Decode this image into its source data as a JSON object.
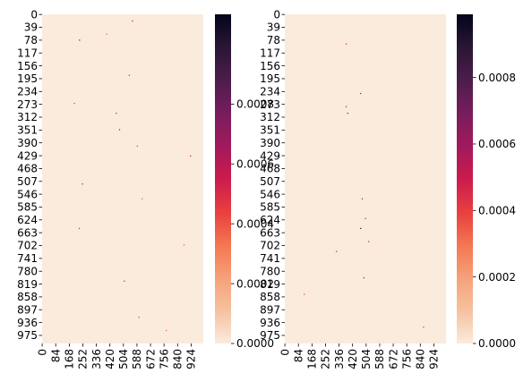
{
  "chart_data": [
    {
      "type": "heatmap",
      "colormap": "rocket_r",
      "rows": 1000,
      "cols": 1000,
      "y_tick_labels": [
        "0",
        "39",
        "78",
        "117",
        "156",
        "195",
        "234",
        "273",
        "312",
        "351",
        "390",
        "429",
        "468",
        "507",
        "546",
        "585",
        "624",
        "663",
        "702",
        "741",
        "780",
        "819",
        "858",
        "897",
        "936",
        "975"
      ],
      "x_tick_labels": [
        "0",
        "84",
        "168",
        "252",
        "336",
        "420",
        "504",
        "588",
        "672",
        "756",
        "840",
        "924"
      ],
      "colorbar_tick_labels": [
        "0.0000",
        "0.0002",
        "0.0004",
        "0.0006",
        "0.0008"
      ],
      "colorbar_ticks": [
        0,
        0.0002,
        0.0004,
        0.0006,
        0.0008
      ],
      "value_range": [
        0,
        0.0011
      ],
      "background_value": 0,
      "sparse_values": [
        {
          "row": 20,
          "col": 560,
          "value": 0.00055
        },
        {
          "row": 78,
          "col": 232,
          "value": 0.00085
        },
        {
          "row": 60,
          "col": 400,
          "value": 0.0004
        },
        {
          "row": 185,
          "col": 540,
          "value": 0.0006
        },
        {
          "row": 270,
          "col": 200,
          "value": 0.0005
        },
        {
          "row": 300,
          "col": 460,
          "value": 0.0007
        },
        {
          "row": 350,
          "col": 480,
          "value": 0.0008
        },
        {
          "row": 400,
          "col": 590,
          "value": 0.0005
        },
        {
          "row": 430,
          "col": 920,
          "value": 0.0006
        },
        {
          "row": 515,
          "col": 250,
          "value": 0.0007
        },
        {
          "row": 560,
          "col": 620,
          "value": 0.0004
        },
        {
          "row": 650,
          "col": 230,
          "value": 0.0005
        },
        {
          "row": 700,
          "col": 880,
          "value": 0.0004
        },
        {
          "row": 810,
          "col": 510,
          "value": 0.0006
        },
        {
          "row": 920,
          "col": 600,
          "value": 0.0005
        },
        {
          "row": 960,
          "col": 770,
          "value": 0.0004
        }
      ]
    },
    {
      "type": "heatmap",
      "colormap": "rocket_r",
      "rows": 1000,
      "cols": 1000,
      "y_tick_labels": [
        "0",
        "39",
        "78",
        "117",
        "156",
        "195",
        "234",
        "273",
        "312",
        "351",
        "390",
        "429",
        "468",
        "507",
        "546",
        "585",
        "624",
        "663",
        "702",
        "741",
        "780",
        "819",
        "858",
        "897",
        "936",
        "975"
      ],
      "x_tick_labels": [
        "0",
        "84",
        "168",
        "252",
        "336",
        "420",
        "504",
        "588",
        "672",
        "756",
        "840",
        "924"
      ],
      "colorbar_tick_labels": [
        "0.0000",
        "0.0002",
        "0.0004",
        "0.0006",
        "0.0008"
      ],
      "colorbar_ticks": [
        0,
        0.0002,
        0.0004,
        0.0006,
        0.0008
      ],
      "value_range": [
        0,
        0.00099
      ],
      "background_value": 0,
      "sparse_values": [
        {
          "row": 90,
          "col": 380,
          "value": 0.0005
        },
        {
          "row": 240,
          "col": 470,
          "value": 0.0007
        },
        {
          "row": 280,
          "col": 380,
          "value": 0.0006
        },
        {
          "row": 300,
          "col": 390,
          "value": 0.0008
        },
        {
          "row": 560,
          "col": 480,
          "value": 0.0007
        },
        {
          "row": 620,
          "col": 500,
          "value": 0.0006
        },
        {
          "row": 650,
          "col": 470,
          "value": 0.0009
        },
        {
          "row": 690,
          "col": 520,
          "value": 0.0005
        },
        {
          "row": 720,
          "col": 320,
          "value": 0.0006
        },
        {
          "row": 800,
          "col": 490,
          "value": 0.0007
        },
        {
          "row": 850,
          "col": 120,
          "value": 0.0004
        },
        {
          "row": 950,
          "col": 860,
          "value": 0.0005
        }
      ]
    }
  ]
}
